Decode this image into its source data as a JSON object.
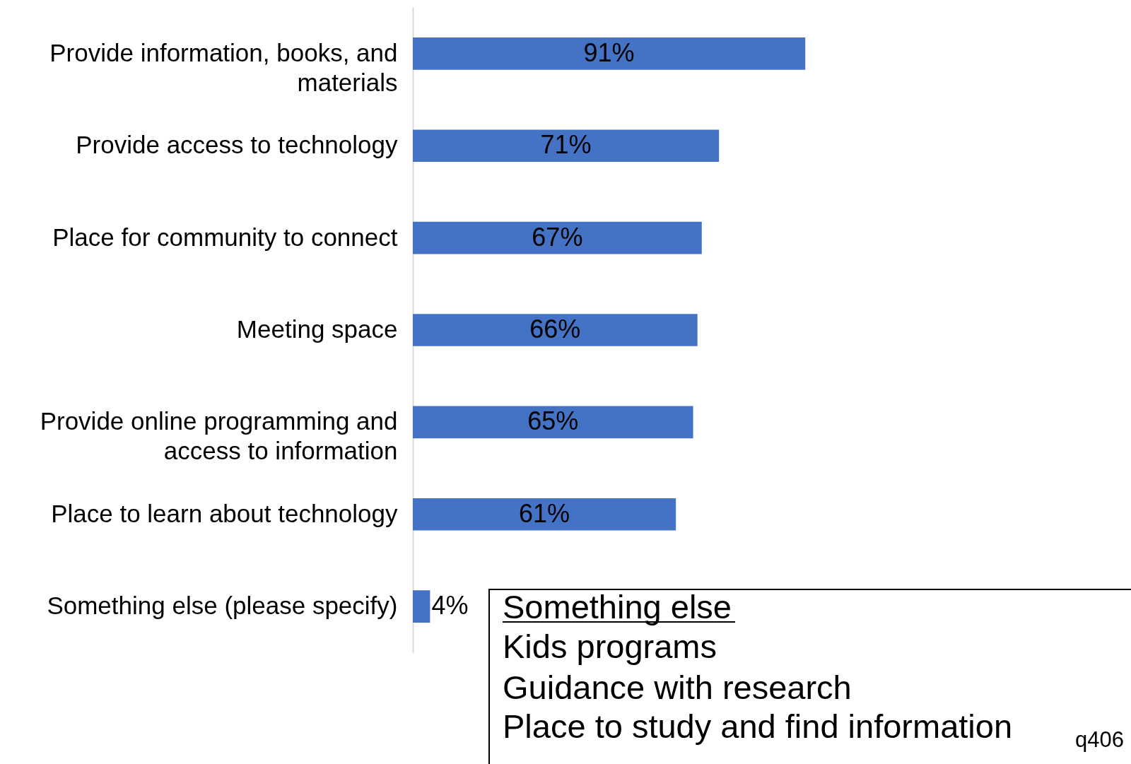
{
  "chart_data": {
    "type": "bar",
    "orientation": "horizontal",
    "categories": [
      "Provide information, books, and materials",
      "Provide access to technology",
      "Place for community to connect",
      "Meeting space",
      "Provide online programming and access to information",
      "Place to learn about technology",
      "Something else (please specify)"
    ],
    "values": [
      91,
      71,
      67,
      66,
      65,
      61,
      4
    ],
    "value_labels": [
      "91%",
      "71%",
      "67%",
      "66%",
      "65%",
      "61%",
      "4%"
    ],
    "color": "#4472c4",
    "grid": false,
    "annotations": [
      "Something else",
      "Kids programs",
      "Guidance with research",
      "Place to study and find information",
      "q406"
    ]
  }
}
